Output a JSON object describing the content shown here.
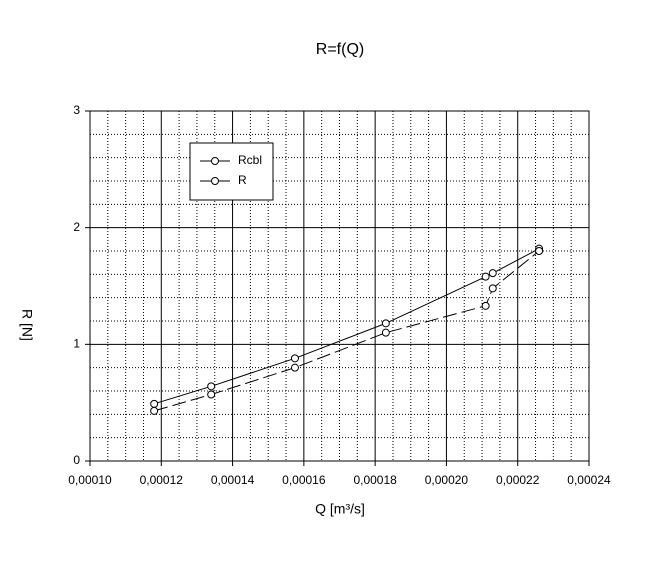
{
  "chart_data": {
    "type": "line",
    "title": "R=f(Q)",
    "xlabel": "Q [m³/s]",
    "ylabel": "R [N]",
    "xlim": [
      0.0001,
      0.00024
    ],
    "ylim": [
      0,
      3
    ],
    "xticks": [
      {
        "value": 0.0001,
        "label": "0,00010"
      },
      {
        "value": 0.00012,
        "label": "0,00012"
      },
      {
        "value": 0.00014,
        "label": "0,00014"
      },
      {
        "value": 0.00016,
        "label": "0,00016"
      },
      {
        "value": 0.00018,
        "label": "0,00018"
      },
      {
        "value": 0.0002,
        "label": "0,00020"
      },
      {
        "value": 0.00022,
        "label": "0,00022"
      },
      {
        "value": 0.00024,
        "label": "0,00024"
      }
    ],
    "yticks": [
      0,
      1,
      2,
      3
    ],
    "grid": true,
    "minor_grid": {
      "x": 4,
      "y": 5
    },
    "legend": "upper left",
    "series": [
      {
        "name": "Rcbl",
        "color": "#000000",
        "dash": "solid",
        "x": [
          0.000118,
          0.000134,
          0.0001575,
          0.000183,
          0.000211,
          0.000213,
          0.000226
        ],
        "values": [
          0.49,
          0.64,
          0.88,
          1.18,
          1.58,
          1.61,
          1.82
        ]
      },
      {
        "name": "R",
        "color": "#000000",
        "dash": "dashed",
        "x": [
          0.000118,
          0.000134,
          0.0001575,
          0.000183,
          0.000211,
          0.000213,
          0.000226
        ],
        "values": [
          0.43,
          0.57,
          0.8,
          1.1,
          1.33,
          1.48,
          1.8
        ]
      }
    ]
  }
}
